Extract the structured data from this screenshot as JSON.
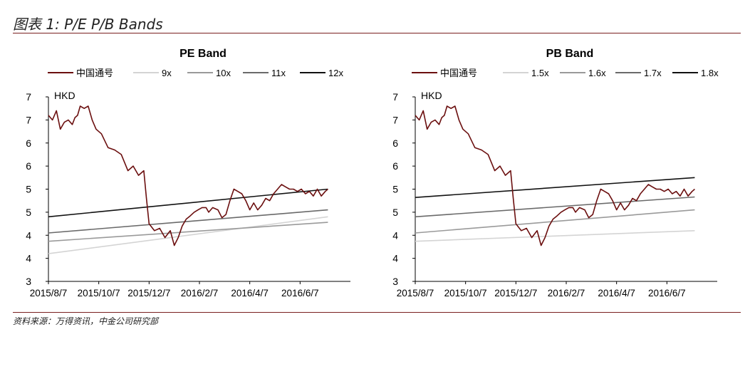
{
  "figure": {
    "title": "图表 1: P/E P/B Bands",
    "source": "资料来源：万得资讯，中金公司研究部"
  },
  "chart_data": [
    {
      "type": "line",
      "title": "PE Band",
      "ylabel": "HKD",
      "yticks": [
        "3",
        "4",
        "4",
        "5",
        "5",
        "6",
        "6",
        "7",
        "7"
      ],
      "ylim": [
        3,
        7
      ],
      "xticks": [
        "2015/8/7",
        "2015/10/7",
        "2015/12/7",
        "2016/2/7",
        "2016/4/7",
        "2016/6/7"
      ],
      "legend_position": "top",
      "series": [
        {
          "name": "中国通号",
          "color": "#6b0f0f",
          "x": [
            0,
            3,
            6,
            9,
            12,
            15,
            18,
            20,
            22,
            24,
            27,
            30,
            33,
            36,
            40,
            45,
            50,
            55,
            60,
            64,
            68,
            72,
            74,
            76,
            80,
            84,
            88,
            92,
            95,
            98,
            101,
            104,
            107,
            110,
            113,
            116,
            119,
            121,
            124,
            128,
            131,
            134,
            137,
            140,
            143,
            146,
            149,
            152,
            155,
            158,
            161,
            164,
            167,
            170,
            173,
            176,
            179,
            182,
            185,
            188,
            191,
            194,
            197,
            200,
            203,
            206,
            209,
            211
          ],
          "values": [
            6.6,
            6.5,
            6.7,
            6.3,
            6.45,
            6.5,
            6.4,
            6.55,
            6.6,
            6.8,
            6.75,
            6.8,
            6.5,
            6.3,
            6.2,
            5.9,
            5.85,
            5.75,
            5.4,
            5.5,
            5.3,
            5.4,
            4.8,
            4.25,
            4.1,
            4.15,
            3.95,
            4.1,
            3.78,
            3.95,
            4.2,
            4.35,
            4.42,
            4.5,
            4.55,
            4.6,
            4.6,
            4.5,
            4.6,
            4.55,
            4.38,
            4.45,
            4.75,
            5.0,
            4.95,
            4.9,
            4.75,
            4.55,
            4.7,
            4.55,
            4.65,
            4.8,
            4.75,
            4.9,
            5.0,
            5.1,
            5.05,
            5.0,
            5.0,
            4.95,
            5.0,
            4.9,
            4.95,
            4.85,
            5.0,
            4.85,
            4.95,
            5.0
          ]
        },
        {
          "name": "9x",
          "color": "#d4d4d4",
          "x": [
            0,
            211
          ],
          "values": [
            3.6,
            4.4
          ]
        },
        {
          "name": "10x",
          "color": "#9a9a9a",
          "x": [
            0,
            211
          ],
          "values": [
            3.87,
            4.28
          ]
        },
        {
          "name": "11x",
          "color": "#6a6a6a",
          "x": [
            0,
            211
          ],
          "values": [
            4.05,
            4.55
          ]
        },
        {
          "name": "12x",
          "color": "#111111",
          "x": [
            0,
            211
          ],
          "values": [
            4.4,
            5.0
          ]
        }
      ]
    },
    {
      "type": "line",
      "title": "PB Band",
      "ylabel": "HKD",
      "yticks": [
        "3",
        "4",
        "4",
        "5",
        "5",
        "6",
        "6",
        "7",
        "7"
      ],
      "ylim": [
        3,
        7
      ],
      "xticks": [
        "2015/8/7",
        "2015/10/7",
        "2015/12/7",
        "2016/2/7",
        "2016/4/7",
        "2016/6/7"
      ],
      "legend_position": "top",
      "series": [
        {
          "name": "中国通号",
          "color": "#6b0f0f",
          "x": [
            0,
            3,
            6,
            9,
            12,
            15,
            18,
            20,
            22,
            24,
            27,
            30,
            33,
            36,
            40,
            45,
            50,
            55,
            60,
            64,
            68,
            72,
            74,
            76,
            80,
            84,
            88,
            92,
            95,
            98,
            101,
            104,
            107,
            110,
            113,
            116,
            119,
            121,
            124,
            128,
            131,
            134,
            137,
            140,
            143,
            146,
            149,
            152,
            155,
            158,
            161,
            164,
            167,
            170,
            173,
            176,
            179,
            182,
            185,
            188,
            191,
            194,
            197,
            200,
            203,
            206,
            209,
            211
          ],
          "values": [
            6.6,
            6.5,
            6.7,
            6.3,
            6.45,
            6.5,
            6.4,
            6.55,
            6.6,
            6.8,
            6.75,
            6.8,
            6.5,
            6.3,
            6.2,
            5.9,
            5.85,
            5.75,
            5.4,
            5.5,
            5.3,
            5.4,
            4.8,
            4.25,
            4.1,
            4.15,
            3.95,
            4.1,
            3.78,
            3.95,
            4.2,
            4.35,
            4.42,
            4.5,
            4.55,
            4.6,
            4.6,
            4.5,
            4.6,
            4.55,
            4.38,
            4.45,
            4.75,
            5.0,
            4.95,
            4.9,
            4.75,
            4.55,
            4.7,
            4.55,
            4.65,
            4.8,
            4.75,
            4.9,
            5.0,
            5.1,
            5.05,
            5.0,
            5.0,
            4.95,
            5.0,
            4.9,
            4.95,
            4.85,
            5.0,
            4.85,
            4.95,
            5.0
          ]
        },
        {
          "name": "1.5x",
          "color": "#d4d4d4",
          "x": [
            0,
            211
          ],
          "values": [
            3.87,
            4.1
          ]
        },
        {
          "name": "1.6x",
          "color": "#9a9a9a",
          "x": [
            0,
            211
          ],
          "values": [
            4.05,
            4.55
          ]
        },
        {
          "name": "1.7x",
          "color": "#6a6a6a",
          "x": [
            0,
            211
          ],
          "values": [
            4.4,
            4.83
          ]
        },
        {
          "name": "1.8x",
          "color": "#111111",
          "x": [
            0,
            211
          ],
          "values": [
            4.82,
            5.25
          ]
        }
      ]
    }
  ]
}
